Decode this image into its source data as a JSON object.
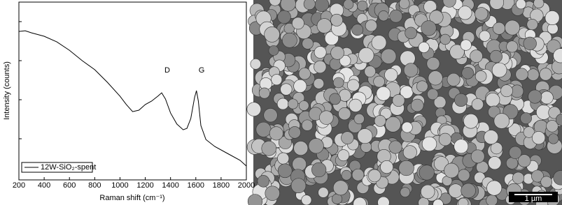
{
  "chart_data": {
    "type": "line",
    "y_label": "Intensity (counts)",
    "x_label": "Raman shift (cm⁻¹)",
    "annotations": [
      "D",
      "G"
    ],
    "x": [
      200,
      250,
      300,
      400,
      500,
      600,
      700,
      800,
      900,
      1000,
      1050,
      1100,
      1150,
      1200,
      1250,
      1300,
      1330,
      1360,
      1400,
      1450,
      1500,
      1530,
      1560,
      1590,
      1605,
      1620,
      1640,
      1680,
      1750,
      1850,
      1950,
      2000
    ],
    "series": [
      {
        "name": "12W-SiO₂-spent",
        "color": "#000000",
        "values": [
          83.5,
          83.9,
          82.7,
          80.8,
          77.6,
          72.9,
          67.1,
          62.0,
          54.9,
          47.1,
          42.4,
          38.4,
          39.2,
          42.4,
          44.3,
          47.1,
          49.0,
          45.5,
          37.6,
          31.4,
          28.2,
          29.0,
          34.5,
          46.3,
          50.2,
          44.3,
          30.6,
          22.7,
          18.8,
          14.9,
          11.0,
          7.8
        ]
      }
    ],
    "xlim": [
      200,
      2000
    ],
    "ylim": [
      0,
      100
    ],
    "xticks": [
      200,
      400,
      600,
      800,
      1000,
      1200,
      1400,
      1600,
      1800,
      2000
    ]
  },
  "image": {
    "scale_bar": "1 µm"
  }
}
